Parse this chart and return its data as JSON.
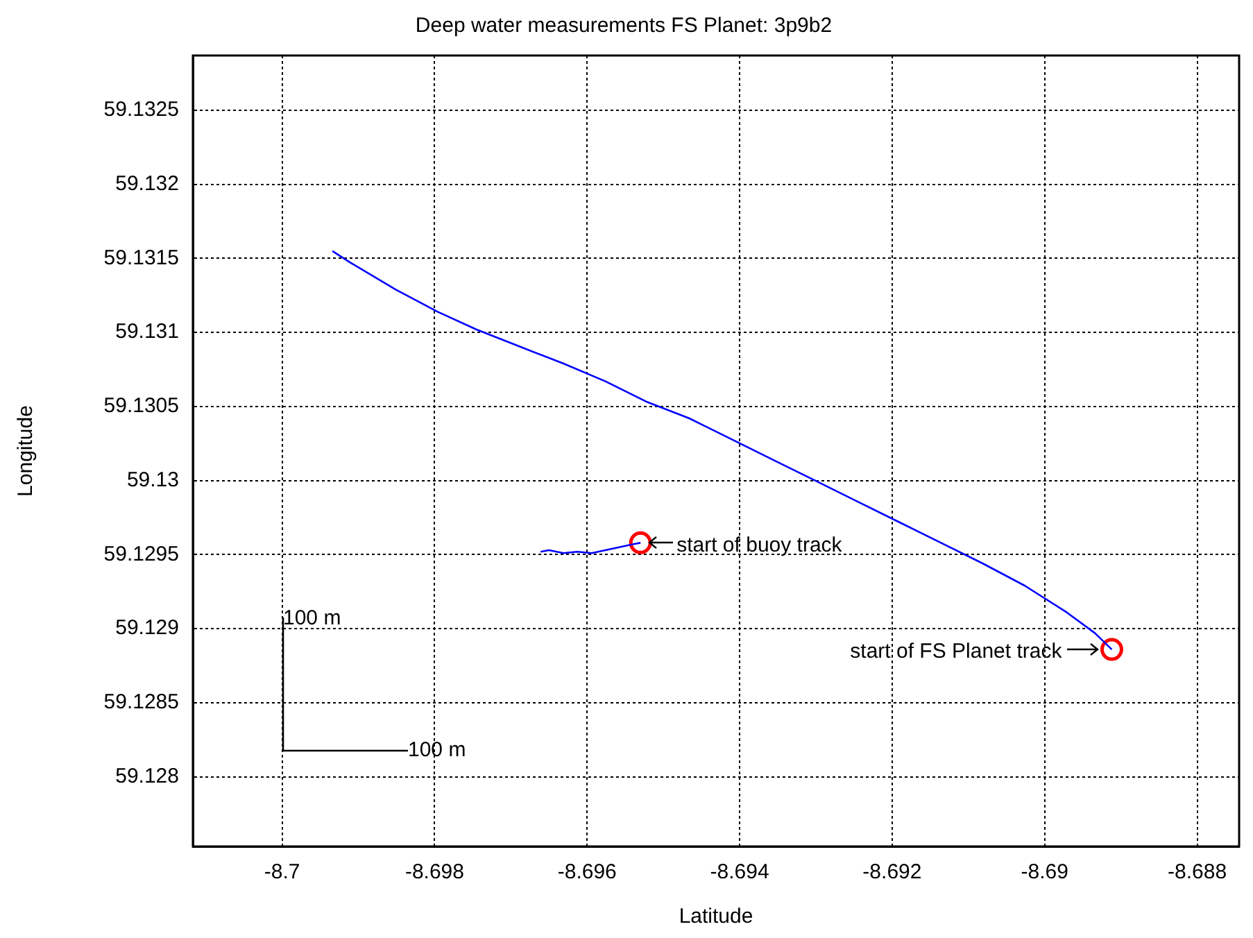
{
  "chart_data": {
    "type": "line",
    "title": "Deep water measurements FS Planet: 3p9b2",
    "xlabel": "Latitude",
    "ylabel": "Longitude",
    "xlim": [
      -8.70117,
      -8.68745
    ],
    "ylim": [
      59.12753,
      59.13287
    ],
    "xticks": [
      -8.7,
      -8.698,
      -8.696,
      -8.694,
      -8.692,
      -8.69,
      -8.688
    ],
    "yticks": [
      59.128,
      59.1285,
      59.129,
      59.1295,
      59.13,
      59.1305,
      59.131,
      59.1315,
      59.132,
      59.1325
    ],
    "grid": true,
    "legend": false,
    "line_style": "solid",
    "marker": "none",
    "series": [
      {
        "type": "line",
        "color": "#0000ff",
        "x": [
          -8.69934,
          -8.6991,
          -8.69851,
          -8.69796,
          -8.69745,
          -8.69686,
          -8.69631,
          -8.69576,
          -8.69521,
          -8.69466,
          -8.69411,
          -8.69356,
          -8.69301,
          -8.69246,
          -8.69191,
          -8.69136,
          -8.69081,
          -8.69026,
          -8.68971,
          -8.68934,
          -8.68912
        ],
        "values": [
          59.13155,
          59.13147,
          59.13129,
          59.13114,
          59.13102,
          59.1309,
          59.13079,
          59.13067,
          59.13053,
          59.13042,
          59.13028,
          59.13014,
          59.13,
          59.12986,
          59.12972,
          59.12958,
          59.12944,
          59.12929,
          59.12911,
          59.12897,
          59.12886
        ]
      },
      {
        "type": "line",
        "color": "#0000ff",
        "x": [
          -8.69661,
          -8.6965,
          -8.69631,
          -8.69613,
          -8.69594,
          -8.69576,
          -8.69558,
          -8.6954,
          -8.6953
        ],
        "values": [
          59.12952,
          59.12953,
          59.12951,
          59.12952,
          59.12951,
          59.12953,
          59.12955,
          59.12957,
          59.12958
        ]
      },
      {
        "type": "scatter",
        "color": "#ff0000",
        "marker": "circle",
        "x": [
          -8.6953,
          -8.68912
        ],
        "values": [
          59.12958,
          59.12886
        ]
      }
    ],
    "annotations": [
      {
        "text": "start of buoy track",
        "x": -8.6953,
        "y": 59.12958
      },
      {
        "text": "start of FS Planet track",
        "x": -8.68912,
        "y": 59.12886
      },
      "100 m",
      "100 m"
    ]
  }
}
